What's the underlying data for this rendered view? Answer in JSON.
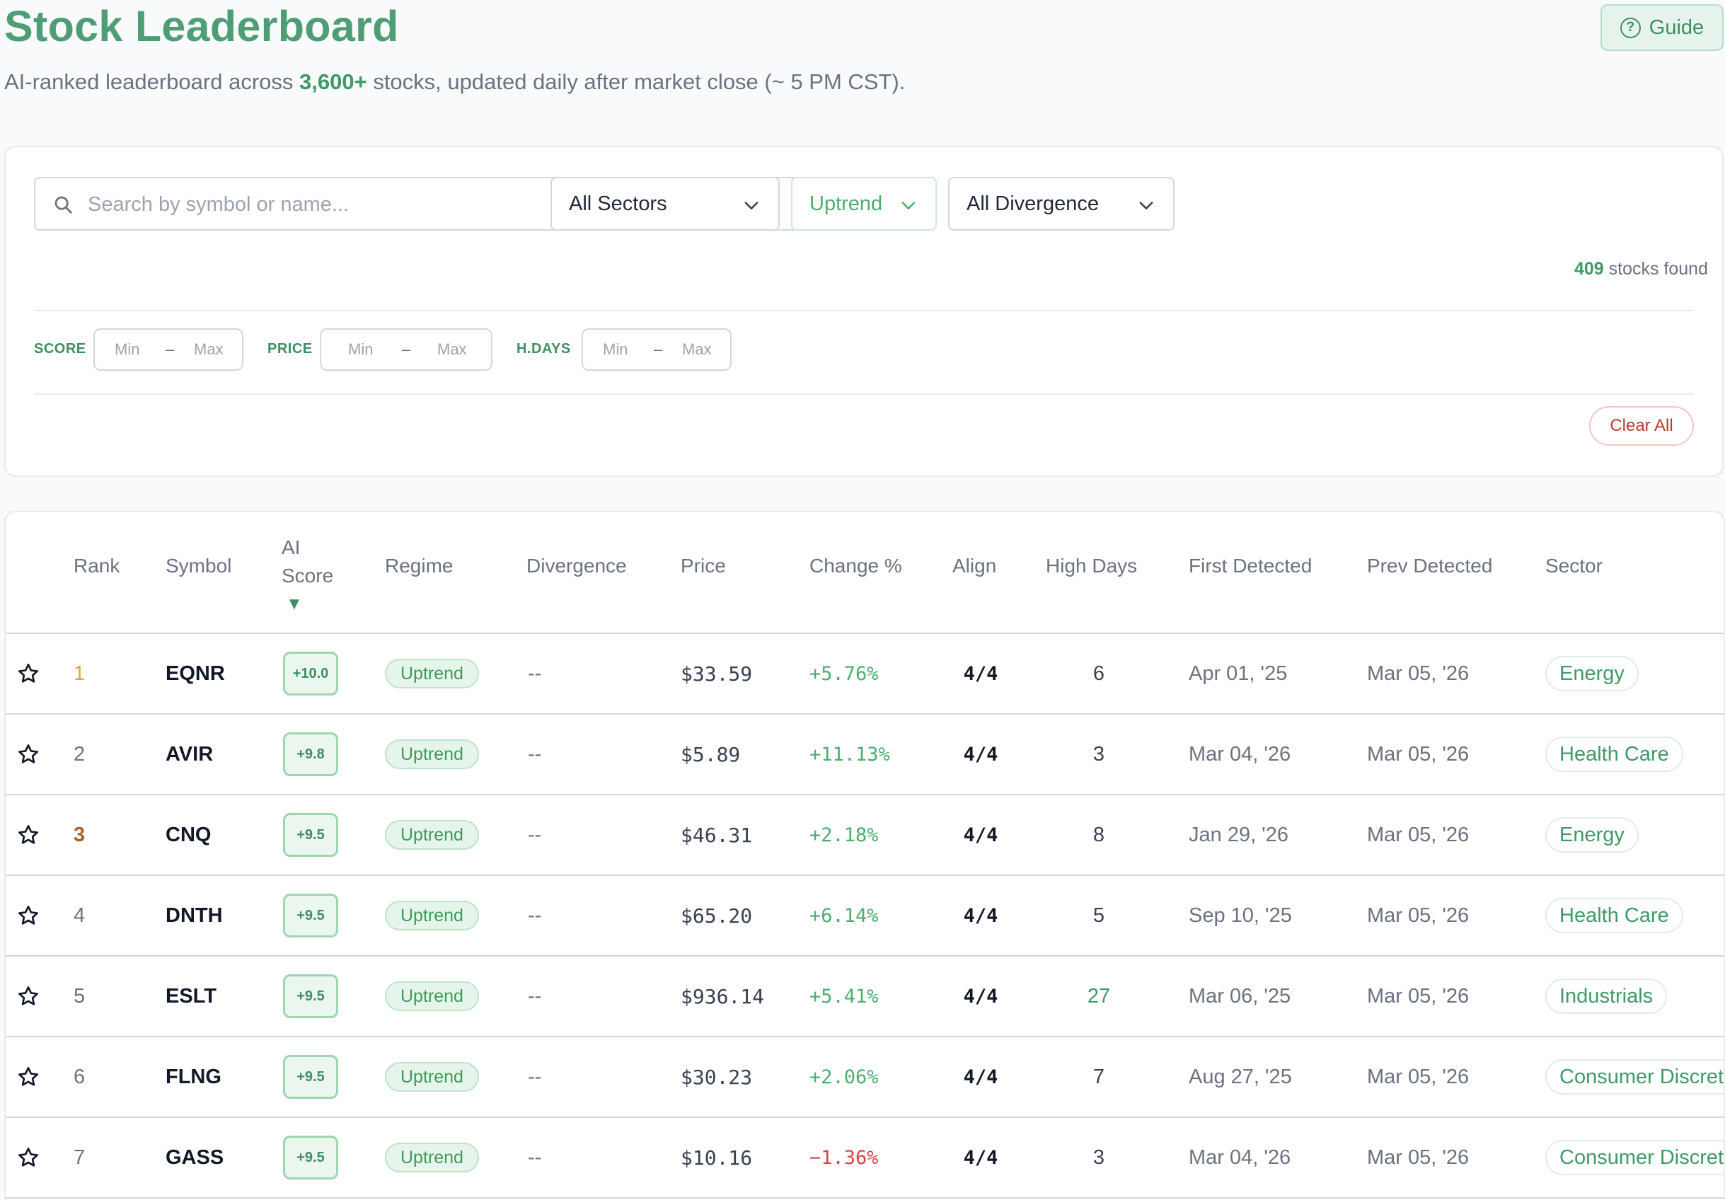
{
  "header": {
    "title": "Stock Leaderboard",
    "subtitle_pre": "AI-ranked leaderboard across ",
    "subtitle_highlight": "3,600+",
    "subtitle_post": " stocks, updated daily after market close (~ 5 PM CST).",
    "guide_label": "Guide"
  },
  "filters": {
    "search_placeholder": "Search by symbol or name...",
    "sector_value": "All Sectors",
    "regime_value": "Uptrend",
    "divergence_value": "All Divergence",
    "found_count": "409",
    "found_label": " stocks found",
    "ranges": [
      {
        "label": "SCORE",
        "min": "Min",
        "max": "Max"
      },
      {
        "label": "PRICE",
        "min": "Min",
        "max": "Max"
      },
      {
        "label": "H.DAYS",
        "min": "Min",
        "max": "Max"
      }
    ],
    "range_separator": "–",
    "clear_label": "Clear All"
  },
  "table": {
    "columns": {
      "rank": "Rank",
      "symbol": "Symbol",
      "ai_score_1": "AI",
      "ai_score_2": "Score",
      "sort_arrow": "▼",
      "regime": "Regime",
      "divergence": "Divergence",
      "price": "Price",
      "change": "Change %",
      "align": "Align",
      "high_days": "High Days",
      "first_detected": "First Detected",
      "prev_detected": "Prev Detected",
      "sector": "Sector"
    },
    "rows": [
      {
        "rank": "1",
        "symbol": "EQNR",
        "score": "+10.0",
        "regime": "Uptrend",
        "divergence": "--",
        "price": "$33.59",
        "change": "+5.76%",
        "align": "4/4",
        "high_days": "6",
        "first": "Apr 01, '25",
        "prev": "Mar 05, '26",
        "sector": "Energy"
      },
      {
        "rank": "2",
        "symbol": "AVIR",
        "score": "+9.8",
        "regime": "Uptrend",
        "divergence": "--",
        "price": "$5.89",
        "change": "+11.13%",
        "align": "4/4",
        "high_days": "3",
        "first": "Mar 04, '26",
        "prev": "Mar 05, '26",
        "sector": "Health Care"
      },
      {
        "rank": "3",
        "symbol": "CNQ",
        "score": "+9.5",
        "regime": "Uptrend",
        "divergence": "--",
        "price": "$46.31",
        "change": "+2.18%",
        "align": "4/4",
        "high_days": "8",
        "first": "Jan 29, '26",
        "prev": "Mar 05, '26",
        "sector": "Energy"
      },
      {
        "rank": "4",
        "symbol": "DNTH",
        "score": "+9.5",
        "regime": "Uptrend",
        "divergence": "--",
        "price": "$65.20",
        "change": "+6.14%",
        "align": "4/4",
        "high_days": "5",
        "first": "Sep 10, '25",
        "prev": "Mar 05, '26",
        "sector": "Health Care"
      },
      {
        "rank": "5",
        "symbol": "ESLT",
        "score": "+9.5",
        "regime": "Uptrend",
        "divergence": "--",
        "price": "$936.14",
        "change": "+5.41%",
        "align": "4/4",
        "high_days": "27",
        "first": "Mar 06, '25",
        "prev": "Mar 05, '26",
        "sector": "Industrials"
      },
      {
        "rank": "6",
        "symbol": "FLNG",
        "score": "+9.5",
        "regime": "Uptrend",
        "divergence": "--",
        "price": "$30.23",
        "change": "+2.06%",
        "align": "4/4",
        "high_days": "7",
        "first": "Aug 27, '25",
        "prev": "Mar 05, '26",
        "sector": "Consumer Discret"
      },
      {
        "rank": "7",
        "symbol": "GASS",
        "score": "+9.5",
        "regime": "Uptrend",
        "divergence": "--",
        "price": "$10.16",
        "change": "−1.36%",
        "align": "4/4",
        "high_days": "3",
        "first": "Mar 04, '26",
        "prev": "Mar 05, '26",
        "sector": "Consumer Discret"
      }
    ]
  },
  "colors": {
    "brand": "#4f9d74",
    "positive": "#4caf6e",
    "negative": "#d64545",
    "rank_gold": "#e0a43a",
    "rank_bronze": "#a8621f"
  },
  "icons": {
    "guide": "help-circle-icon",
    "search": "search-icon",
    "dropdown": "chevron-down-icon",
    "favorite": "star-outline-icon"
  }
}
